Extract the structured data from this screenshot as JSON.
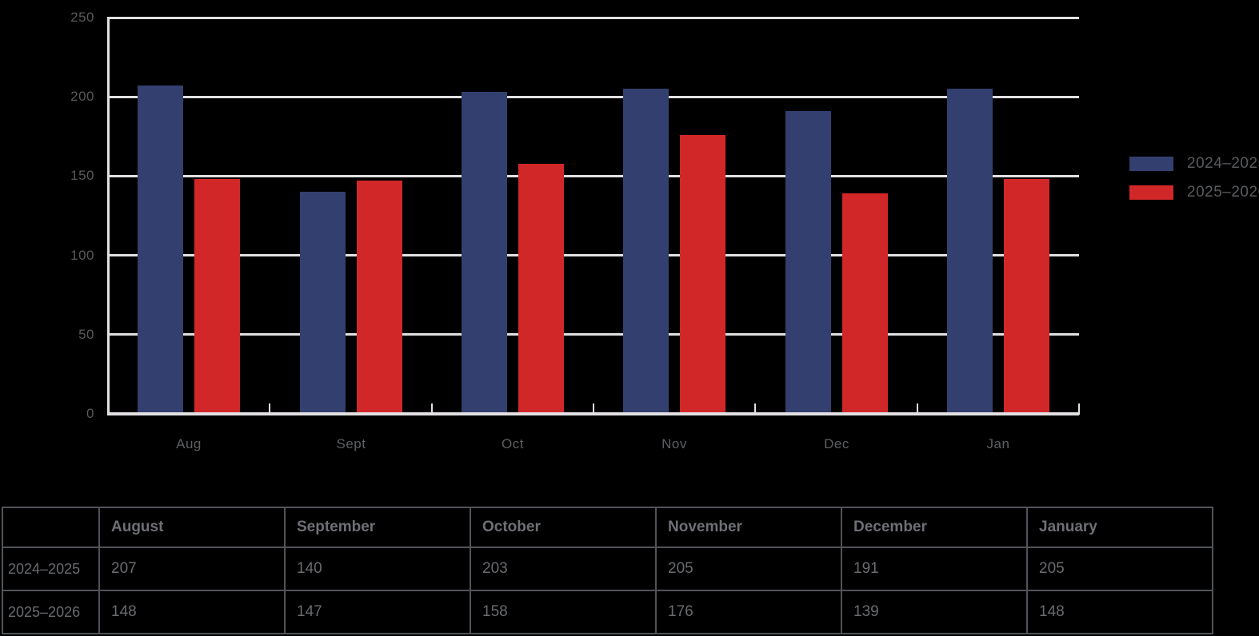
{
  "chart_data": {
    "type": "bar",
    "categories": [
      "Aug",
      "Sept",
      "Oct",
      "Nov",
      "Dec",
      "Jan"
    ],
    "series": [
      {
        "name": "2024–2025",
        "color": "#333F6E",
        "values": [
          207,
          140,
          203,
          205,
          191,
          205
        ]
      },
      {
        "name": "2025–2026",
        "color": "#D22729",
        "values": [
          148,
          147,
          158,
          176,
          139,
          148
        ]
      }
    ],
    "title": "",
    "xlabel": "",
    "ylabel": "",
    "ylim": [
      0,
      250
    ],
    "yticks": [
      0,
      50,
      100,
      150,
      200,
      250
    ],
    "grid": true,
    "legend_position": "right",
    "colors": {
      "background": "#000000",
      "gridline": "#E2E0E2",
      "axis_label": "#58595C",
      "legend_text": "#595B5E"
    }
  },
  "table": {
    "columns": [
      "",
      "August",
      "September",
      "October",
      "November",
      "December",
      "January"
    ],
    "rows": [
      {
        "label": "2024–2025",
        "values": [
          "207",
          "140",
          "203",
          "205",
          "191",
          "205"
        ]
      },
      {
        "label": "2025–2026",
        "values": [
          "148",
          "147",
          "158",
          "176",
          "139",
          "148"
        ]
      }
    ],
    "border_color": "#515358"
  }
}
